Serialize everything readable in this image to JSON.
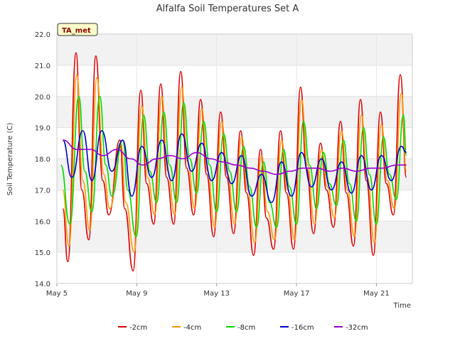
{
  "chart_data": {
    "type": "line",
    "title": "Alfalfa Soil Temperatures Set A",
    "xlabel": "Time",
    "ylabel": "Soil Temperature (C)",
    "ylim": [
      14.0,
      22.0
    ],
    "xlim_day": [
      5.0,
      22.8
    ],
    "x_tick_labels": [
      "May 5",
      "May 9",
      "May 13",
      "May 17",
      "May 21"
    ],
    "x_tick_days": [
      5,
      9,
      13,
      17,
      21
    ],
    "y_ticks": [
      14.0,
      15.0,
      16.0,
      17.0,
      18.0,
      19.0,
      20.0,
      21.0,
      22.0
    ],
    "y_tick_labels": [
      "14.0",
      "15.0",
      "16.0",
      "17.0",
      "18.0",
      "19.0",
      "20.0",
      "21.0",
      "22.0"
    ],
    "grid": true,
    "legend_position": "bottom",
    "badge": "TA_met",
    "series": [
      {
        "name": "-2cm",
        "color": "#dd0000",
        "x": [
          5.3,
          5.55,
          5.96,
          6.25,
          6.6,
          6.95,
          7.3,
          7.6,
          8.15,
          8.4,
          8.82,
          9.2,
          9.5,
          9.85,
          10.2,
          10.5,
          10.85,
          11.2,
          11.5,
          11.85,
          12.2,
          12.5,
          12.85,
          13.2,
          13.5,
          13.85,
          14.2,
          14.5,
          14.85,
          15.2,
          15.5,
          15.85,
          16.2,
          16.5,
          16.85,
          17.2,
          17.5,
          17.85,
          18.2,
          18.5,
          18.85,
          19.2,
          19.5,
          19.85,
          20.2,
          20.5,
          20.85,
          21.2,
          21.5,
          21.85,
          22.2,
          22.5
        ],
        "y": [
          16.4,
          14.7,
          21.4,
          17.0,
          15.4,
          21.3,
          17.3,
          16.2,
          18.6,
          16.4,
          14.4,
          20.2,
          17.2,
          15.9,
          20.4,
          17.4,
          15.9,
          20.8,
          17.7,
          16.2,
          19.9,
          17.5,
          15.5,
          19.5,
          17.4,
          15.6,
          18.9,
          16.9,
          14.9,
          18.3,
          16.1,
          15.1,
          18.9,
          16.9,
          15.1,
          20.3,
          17.7,
          15.6,
          18.5,
          17.0,
          15.8,
          19.2,
          16.9,
          15.2,
          19.9,
          17.3,
          14.9,
          19.5,
          17.2,
          16.2,
          20.7,
          17.4
        ]
      },
      {
        "name": "-4cm",
        "color": "#ff9900",
        "x": [
          5.3,
          5.6,
          6.0,
          6.3,
          6.65,
          7.0,
          7.35,
          7.65,
          8.2,
          8.45,
          8.87,
          9.25,
          9.55,
          9.9,
          10.25,
          10.55,
          10.9,
          11.25,
          11.55,
          11.9,
          12.25,
          12.55,
          12.9,
          13.25,
          13.55,
          13.9,
          14.25,
          14.55,
          14.9,
          15.25,
          15.55,
          15.9,
          16.25,
          16.55,
          16.9,
          17.25,
          17.55,
          17.9,
          18.25,
          18.55,
          18.9,
          19.25,
          19.55,
          19.9,
          20.25,
          20.55,
          20.9,
          21.25,
          21.55,
          21.9,
          22.25,
          22.5
        ],
        "y": [
          17.0,
          15.2,
          20.7,
          17.3,
          15.7,
          20.6,
          17.5,
          16.4,
          18.5,
          16.6,
          15.0,
          19.7,
          17.4,
          16.2,
          20.0,
          17.6,
          16.2,
          20.3,
          17.9,
          16.4,
          19.6,
          17.6,
          15.8,
          19.2,
          17.5,
          15.9,
          18.7,
          17.0,
          15.3,
          18.1,
          16.3,
          15.4,
          18.6,
          17.0,
          15.4,
          19.9,
          17.8,
          15.9,
          18.3,
          17.1,
          16.1,
          18.9,
          17.0,
          15.5,
          19.4,
          17.4,
          15.3,
          19.1,
          17.3,
          16.4,
          20.1,
          17.6
        ]
      },
      {
        "name": "-8cm",
        "color": "#00dd00",
        "x": [
          5.2,
          5.65,
          6.1,
          6.4,
          6.75,
          7.15,
          7.45,
          7.75,
          8.3,
          8.55,
          8.97,
          9.35,
          9.65,
          10.0,
          10.35,
          10.65,
          11.0,
          11.35,
          11.65,
          12.0,
          12.35,
          12.65,
          13.0,
          13.35,
          13.65,
          14.0,
          14.35,
          14.65,
          15.0,
          15.35,
          15.65,
          16.0,
          16.35,
          16.65,
          17.0,
          17.35,
          17.65,
          18.0,
          18.35,
          18.65,
          19.0,
          19.35,
          19.65,
          20.0,
          20.35,
          20.65,
          21.0,
          21.35,
          21.65,
          22.0,
          22.35,
          22.5
        ],
        "y": [
          17.8,
          15.9,
          20.0,
          17.6,
          16.3,
          20.0,
          17.8,
          16.8,
          18.6,
          17.0,
          15.5,
          19.4,
          17.6,
          16.6,
          19.5,
          17.8,
          16.6,
          19.8,
          18.0,
          16.9,
          19.2,
          17.8,
          16.3,
          18.8,
          17.6,
          16.3,
          18.4,
          17.1,
          15.8,
          17.9,
          16.6,
          15.8,
          18.3,
          17.1,
          15.9,
          19.2,
          17.8,
          16.4,
          18.2,
          17.2,
          16.5,
          18.6,
          17.2,
          16.0,
          19.0,
          17.5,
          15.9,
          18.7,
          17.5,
          16.7,
          19.4,
          18.1
        ]
      },
      {
        "name": "-16cm",
        "color": "#0000cc",
        "x": [
          5.3,
          5.75,
          6.3,
          6.75,
          7.25,
          7.75,
          8.3,
          8.75,
          9.25,
          9.75,
          10.25,
          10.75,
          11.25,
          11.75,
          12.25,
          12.75,
          13.25,
          13.75,
          14.25,
          14.75,
          15.25,
          15.75,
          16.25,
          16.75,
          17.25,
          17.75,
          18.25,
          18.75,
          19.25,
          19.75,
          20.25,
          20.75,
          21.25,
          21.75,
          22.25,
          22.5
        ],
        "y": [
          18.6,
          17.4,
          18.9,
          17.3,
          18.9,
          17.6,
          18.6,
          16.8,
          18.4,
          17.4,
          18.6,
          17.3,
          18.8,
          17.6,
          18.5,
          17.3,
          18.2,
          17.2,
          18.1,
          16.8,
          17.5,
          16.6,
          17.9,
          16.8,
          18.2,
          17.1,
          18.0,
          17.0,
          17.9,
          16.9,
          18.1,
          17.0,
          18.1,
          17.3,
          18.4,
          18.2
        ]
      },
      {
        "name": "-32cm",
        "color": "#9900cc",
        "x": [
          5.3,
          6.0,
          6.7,
          7.3,
          8.0,
          8.7,
          9.3,
          10.0,
          10.7,
          11.3,
          12.0,
          12.7,
          13.3,
          14.0,
          14.7,
          15.3,
          16.0,
          16.7,
          17.3,
          18.0,
          18.7,
          19.3,
          20.0,
          20.7,
          21.3,
          22.0,
          22.5
        ],
        "y": [
          18.6,
          18.3,
          18.3,
          18.1,
          18.3,
          18.0,
          17.8,
          18.0,
          18.1,
          18.0,
          18.2,
          18.0,
          17.9,
          17.8,
          17.7,
          17.6,
          17.5,
          17.6,
          17.7,
          17.7,
          17.6,
          17.7,
          17.6,
          17.7,
          17.7,
          17.8,
          17.8
        ]
      }
    ]
  }
}
